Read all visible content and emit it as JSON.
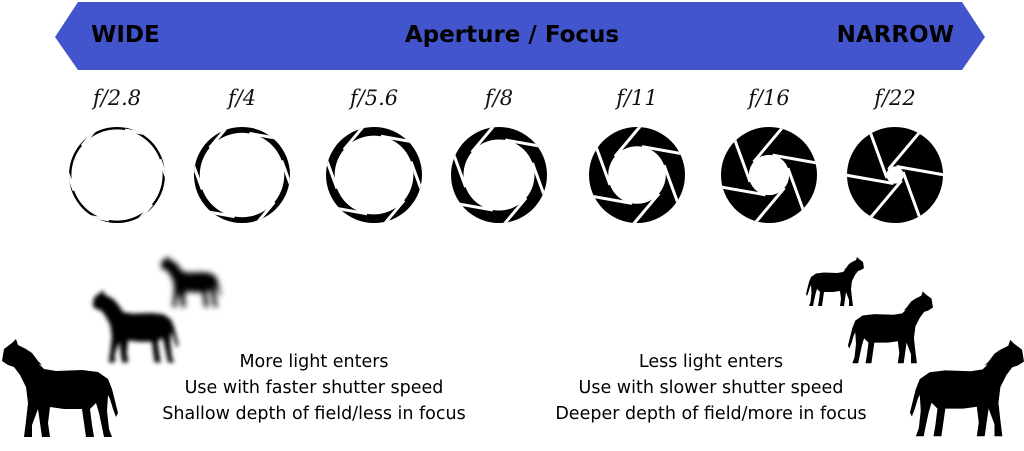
{
  "banner": {
    "left_label": "WIDE",
    "center_label": "Aperture / Focus",
    "right_label": "NARROW",
    "color": "#4355CC"
  },
  "apertures": [
    {
      "label": "f/2.8",
      "inner": 0.95
    },
    {
      "label": "f/4",
      "inner": 0.88
    },
    {
      "label": "f/5.6",
      "inner": 0.82
    },
    {
      "label": "f/8",
      "inner": 0.74
    },
    {
      "label": "f/11",
      "inner": 0.6
    },
    {
      "label": "f/16",
      "inner": 0.42
    },
    {
      "label": "f/22",
      "inner": 0.18
    }
  ],
  "left_caption": {
    "line1": "More light enters",
    "line2": "Use with faster shutter speed",
    "line3": "Shallow depth of field/less in focus"
  },
  "right_caption": {
    "line1": "Less light enters",
    "line2": "Use with slower shutter speed",
    "line3": "Deeper depth of field/more in focus"
  }
}
